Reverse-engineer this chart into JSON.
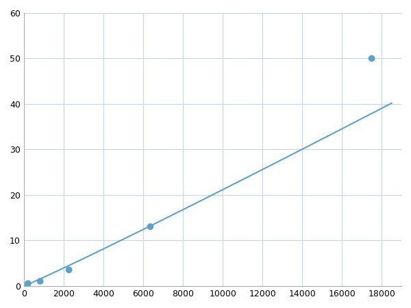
{
  "x_points": [
    188,
    800,
    2250,
    6350,
    17500
  ],
  "y_points": [
    0.5,
    1.0,
    3.5,
    13.0,
    50.0
  ],
  "marker_x": [
    188,
    800,
    2250,
    6350,
    17500
  ],
  "marker_y": [
    0.5,
    1.0,
    3.5,
    13.0,
    50.0
  ],
  "line_color": "#5ba3c9",
  "marker_color": "#5ba3c9",
  "marker_size": 7,
  "line_width": 1.5,
  "xlim": [
    0,
    19000
  ],
  "ylim": [
    0,
    60
  ],
  "xticks": [
    0,
    2000,
    4000,
    6000,
    8000,
    10000,
    12000,
    14000,
    16000,
    18000
  ],
  "yticks": [
    0,
    10,
    20,
    30,
    40,
    50,
    60
  ],
  "grid_color": "#c8d4de",
  "bg_color": "#ffffff",
  "figsize": [
    6.0,
    4.5
  ],
  "dpi": 100
}
